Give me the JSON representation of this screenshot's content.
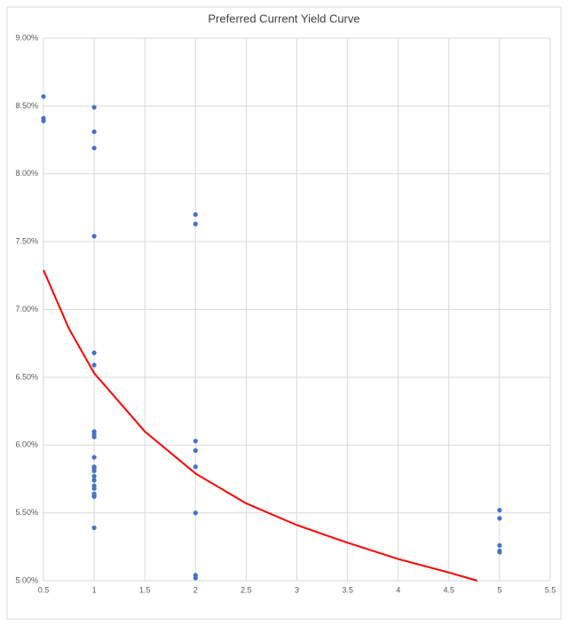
{
  "chart_data": {
    "type": "scatter",
    "title": "Preferred Current Yield Curve",
    "xlim": [
      0.5,
      5.5
    ],
    "xticks": [
      0.5,
      1,
      1.5,
      2,
      2.5,
      3,
      3.5,
      4,
      4.5,
      5,
      5.5
    ],
    "ylim": [
      5,
      9
    ],
    "yticks": [
      {
        "value": 5,
        "label": "5.00%"
      },
      {
        "value": 5.5,
        "label": "5.50%"
      },
      {
        "value": 6,
        "label": "6.00%"
      },
      {
        "value": 6.5,
        "label": "6.50%"
      },
      {
        "value": 7,
        "label": "7.00%"
      },
      {
        "value": 7.5,
        "label": "7.50%"
      },
      {
        "value": 8,
        "label": "8.00%"
      },
      {
        "value": 8.5,
        "label": "8.50%"
      },
      {
        "value": 9,
        "label": "9.00%"
      }
    ],
    "grid": true,
    "series": [
      {
        "type": "scatter",
        "color": "#4472c4",
        "x": [
          0.5,
          0.5,
          0.5,
          1,
          1,
          1,
          1,
          1,
          1,
          1,
          1,
          1,
          1,
          1,
          1,
          1,
          1,
          1,
          1,
          1,
          1,
          1,
          1,
          1,
          2,
          2,
          2,
          2,
          2,
          2,
          2,
          2,
          5,
          5,
          5,
          5,
          5
        ],
        "values": [
          8.57,
          8.41,
          8.39,
          8.49,
          8.31,
          8.19,
          7.54,
          6.68,
          6.59,
          6.1,
          6.08,
          6.06,
          5.91,
          5.84,
          5.83,
          5.81,
          5.77,
          5.74,
          5.7,
          5.68,
          5.64,
          5.63,
          5.62,
          5.39,
          7.7,
          7.63,
          6.03,
          5.96,
          5.84,
          5.5,
          5.04,
          5.02,
          5.52,
          5.46,
          5.26,
          5.22,
          5.21
        ]
      },
      {
        "type": "line",
        "color": "#ff0000",
        "x": [
          0.5,
          0.75,
          1,
          1.5,
          2,
          2.5,
          3,
          3.5,
          4,
          4.5,
          4.78
        ],
        "values": [
          7.29,
          6.86,
          6.53,
          6.1,
          5.79,
          5.57,
          5.41,
          5.28,
          5.16,
          5.06,
          5.0
        ]
      }
    ]
  }
}
